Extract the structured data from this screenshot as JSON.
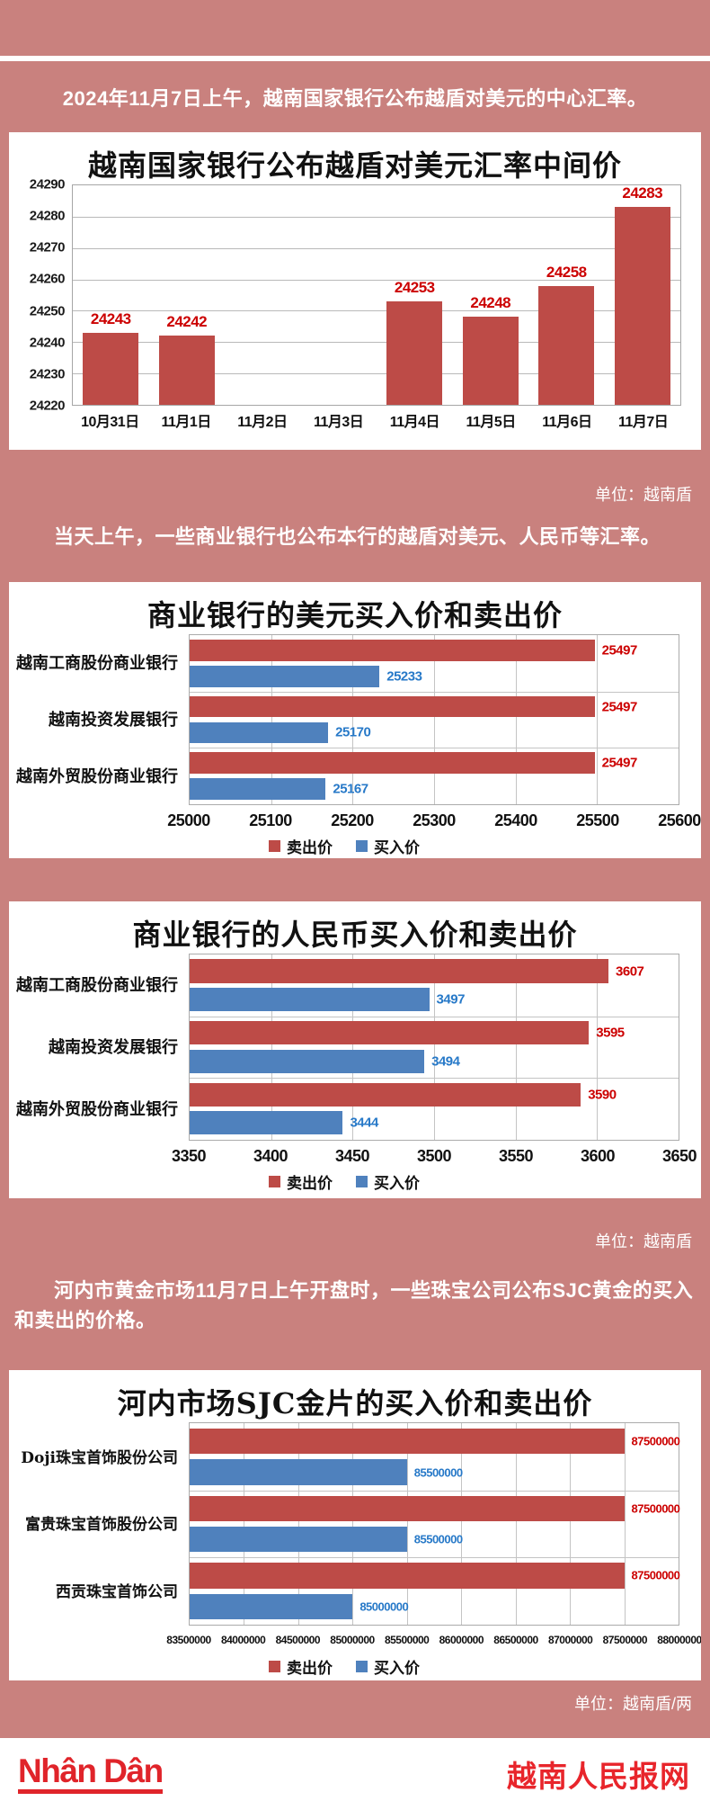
{
  "page": {
    "intro_text": "2024年11月7日上午，越南国家银行公布越盾对美元的中心汇率。",
    "para_banks": "当天上午，一些商业银行也公布本行的越盾对美元、人民币等汇率。",
    "para_gold": "河内市黄金市场11月7日上午开盘时，一些珠宝公司公布SJC黄金的买入和卖出的价格。",
    "unit_vnd_1": "单位：越南盾",
    "unit_vnd_2": "单位：越南盾",
    "unit_gold": "单位：越南盾/两",
    "footer": {
      "logo": "Nhân Dân",
      "site_name": "越南人民报网"
    }
  },
  "colors": {
    "background_pink": "#c9817e",
    "sell_red": "#bd4b47",
    "buy_blue": "#4f81bd",
    "sell_label_red": "#cc0000",
    "buy_label_blue": "#2779c8",
    "footer_red": "#e0242a"
  },
  "chart_data": [
    {
      "type": "bar",
      "title": "越南国家银行公布越盾对美元汇率中间价",
      "categories": [
        "10月31日",
        "11月1日",
        "11月2日",
        "11月3日",
        "11月4日",
        "11月5日",
        "11月6日",
        "11月7日"
      ],
      "values": [
        24243,
        24242,
        null,
        null,
        24253,
        24248,
        24258,
        24283
      ],
      "ylim": [
        24220,
        24290
      ],
      "ytick_step": 10,
      "bar_color": "#bd4b47",
      "label_color": "#cc0000",
      "grid": true,
      "unit_note": "单位：越南盾"
    },
    {
      "type": "bar-horizontal",
      "title": "商业银行的美元买入价和卖出价",
      "categories": [
        "越南工商股份商业银行",
        "越南投资发展银行",
        "越南外贸股份商业银行"
      ],
      "series": [
        {
          "name": "卖出价",
          "color": "#bd4b47",
          "label_color": "#cc0000",
          "values": [
            25497,
            25497,
            25497
          ]
        },
        {
          "name": "买入价",
          "color": "#4f81bd",
          "label_color": "#2779c8",
          "values": [
            25233,
            25170,
            25167
          ]
        }
      ],
      "xlim": [
        25000,
        25600
      ],
      "xtick_step": 100,
      "grid": true,
      "legend_position": "bottom"
    },
    {
      "type": "bar-horizontal",
      "title": "商业银行的人民币买入价和卖出价",
      "categories": [
        "越南工商股份商业银行",
        "越南投资发展银行",
        "越南外贸股份商业银行"
      ],
      "series": [
        {
          "name": "卖出价",
          "color": "#bd4b47",
          "label_color": "#cc0000",
          "values": [
            3607,
            3595,
            3590
          ]
        },
        {
          "name": "买入价",
          "color": "#4f81bd",
          "label_color": "#2779c8",
          "values": [
            3497,
            3494,
            3444
          ]
        }
      ],
      "xlim": [
        3350,
        3650
      ],
      "xtick_step": 50,
      "grid": true,
      "legend_position": "bottom",
      "unit_note": "单位：越南盾"
    },
    {
      "type": "bar-horizontal",
      "title": "河内市场SJC金片的买入价和卖出价",
      "categories": [
        "Doji珠宝首饰股份公司",
        "富贵珠宝首饰股份公司",
        "西贡珠宝首饰公司"
      ],
      "series": [
        {
          "name": "卖出价",
          "color": "#bd4b47",
          "label_color": "#cc0000",
          "values": [
            87500000,
            87500000,
            87500000
          ]
        },
        {
          "name": "买入价",
          "color": "#4f81bd",
          "label_color": "#2779c8",
          "values": [
            85500000,
            85500000,
            85000000
          ]
        }
      ],
      "xlim": [
        83500000,
        88000000
      ],
      "xtick_step": 500000,
      "grid": true,
      "legend_position": "bottom",
      "unit_note": "单位：越南盾/两"
    }
  ]
}
